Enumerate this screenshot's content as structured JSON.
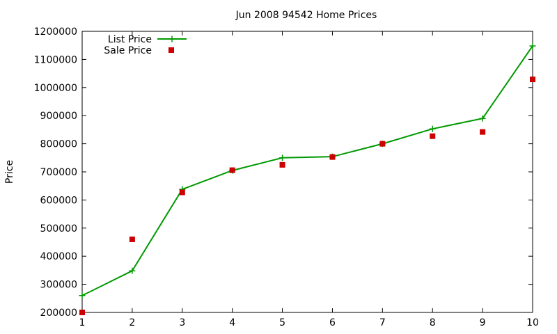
{
  "chart_data": {
    "type": "line",
    "title": "Jun 2008 94542 Home Prices",
    "xlabel": "",
    "ylabel": "Price",
    "x": [
      1,
      2,
      3,
      4,
      5,
      6,
      7,
      8,
      9,
      10
    ],
    "xlim": [
      1,
      10
    ],
    "ylim": [
      200000,
      1200000
    ],
    "xticks": [
      "1",
      "2",
      "3",
      "4",
      "5",
      "6",
      "7",
      "8",
      "9",
      "10"
    ],
    "yticks": [
      "200000",
      "300000",
      "400000",
      "500000",
      "600000",
      "700000",
      "800000",
      "900000",
      "1000000",
      "1100000",
      "1200000"
    ],
    "grid": false,
    "legend_position": "top-left",
    "series": [
      {
        "name": "List Price",
        "style": "line-with-plus-markers",
        "color": "#009900",
        "values": [
          260000,
          348000,
          638000,
          705000,
          750000,
          754000,
          800000,
          853000,
          890000,
          1148000
        ]
      },
      {
        "name": "Sale Price",
        "style": "square-points",
        "color": "#cc0000",
        "values": [
          200000,
          460000,
          627000,
          706000,
          725000,
          753000,
          800000,
          827000,
          842000,
          1029000
        ]
      }
    ]
  }
}
